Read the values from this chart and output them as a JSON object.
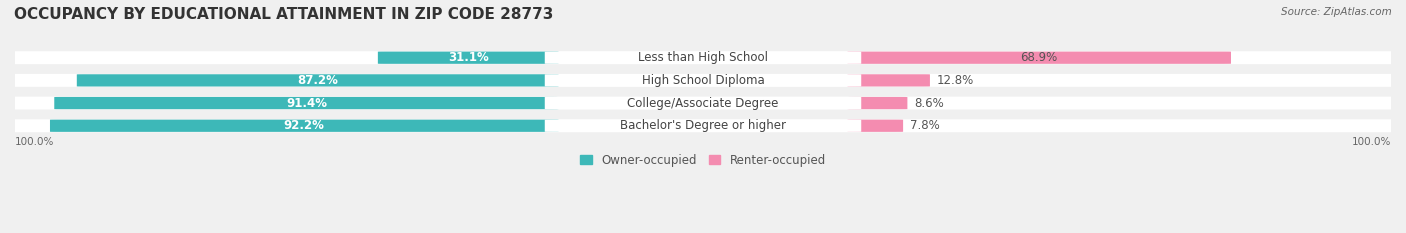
{
  "title": "OCCUPANCY BY EDUCATIONAL ATTAINMENT IN ZIP CODE 28773",
  "source": "Source: ZipAtlas.com",
  "categories": [
    "Less than High School",
    "High School Diploma",
    "College/Associate Degree",
    "Bachelor's Degree or higher"
  ],
  "owner_pct": [
    31.1,
    87.2,
    91.4,
    92.2
  ],
  "renter_pct": [
    68.9,
    12.8,
    8.6,
    7.8
  ],
  "owner_color": "#3db8b8",
  "renter_color": "#f48cb0",
  "background_color": "#f0f0f0",
  "bar_background": "#ffffff",
  "title_fontsize": 11,
  "label_fontsize": 8.5,
  "pct_fontsize": 8.5,
  "legend_fontsize": 8.5,
  "source_fontsize": 7.5,
  "axis_label_fontsize": 7.5
}
